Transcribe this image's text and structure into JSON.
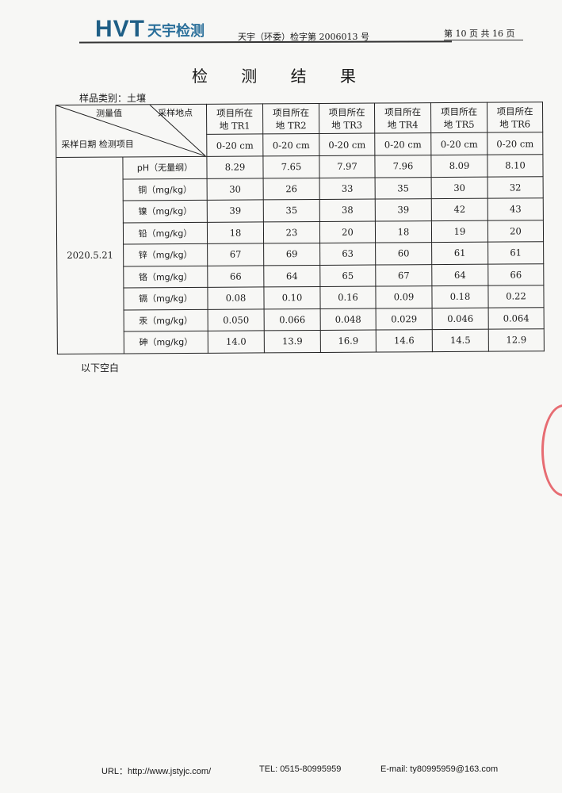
{
  "header": {
    "logo_text": "HVT",
    "logo_cn": "天宇检测",
    "doc_number": "天宇（环委）检字第 2006013 号",
    "page_indicator": "第 10 页 共 16 页"
  },
  "title": "检 测 结 果",
  "sample_category": "样品类别：土壤",
  "table": {
    "corner": {
      "top_mid": "测量值",
      "top_right": "采样地点",
      "bottom_left": "采样日期 检测项目"
    },
    "sites": [
      "项目所在地 TR1",
      "项目所在地 TR2",
      "项目所在地 TR3",
      "项目所在地 TR4",
      "项目所在地 TR5",
      "项目所在地 TR6"
    ],
    "site_lines": [
      [
        "项目所在",
        "地 TR1"
      ],
      [
        "项目所在",
        "地 TR2"
      ],
      [
        "项目所在",
        "地 TR3"
      ],
      [
        "项目所在",
        "地 TR4"
      ],
      [
        "项目所在",
        "地 TR5"
      ],
      [
        "项目所在",
        "地 TR6"
      ]
    ],
    "depths": [
      "0-20 cm",
      "0-20 cm",
      "0-20 cm",
      "0-20 cm",
      "0-20 cm",
      "0-20 cm"
    ],
    "date": "2020.5.21",
    "rows": [
      {
        "item": "pH（无量纲）",
        "values": [
          "8.29",
          "7.65",
          "7.97",
          "7.96",
          "8.09",
          "8.10"
        ]
      },
      {
        "item": "铜（mg/kg）",
        "values": [
          "30",
          "26",
          "33",
          "35",
          "30",
          "32"
        ]
      },
      {
        "item": "镍（mg/kg）",
        "values": [
          "39",
          "35",
          "38",
          "39",
          "42",
          "43"
        ]
      },
      {
        "item": "铅（mg/kg）",
        "values": [
          "18",
          "23",
          "20",
          "18",
          "19",
          "20"
        ]
      },
      {
        "item": "锌（mg/kg）",
        "values": [
          "67",
          "69",
          "63",
          "60",
          "61",
          "61"
        ]
      },
      {
        "item": "铬（mg/kg）",
        "values": [
          "66",
          "64",
          "65",
          "67",
          "64",
          "66"
        ]
      },
      {
        "item": "镉（mg/kg）",
        "values": [
          "0.08",
          "0.10",
          "0.16",
          "0.09",
          "0.18",
          "0.22"
        ]
      },
      {
        "item": "汞（mg/kg）",
        "values": [
          "0.050",
          "0.066",
          "0.048",
          "0.029",
          "0.046",
          "0.064"
        ]
      },
      {
        "item": "砷（mg/kg）",
        "values": [
          "14.0",
          "13.9",
          "16.9",
          "14.6",
          "14.5",
          "12.9"
        ]
      }
    ]
  },
  "end_note": "以下空白",
  "footer": {
    "url": "URL：http://www.jstyjc.com/",
    "tel": "TEL: 0515-80995959",
    "email": "E-mail:  ty80995959@163.com"
  },
  "colors": {
    "logo": "#1f5f86",
    "stamp": "#e0303a"
  }
}
